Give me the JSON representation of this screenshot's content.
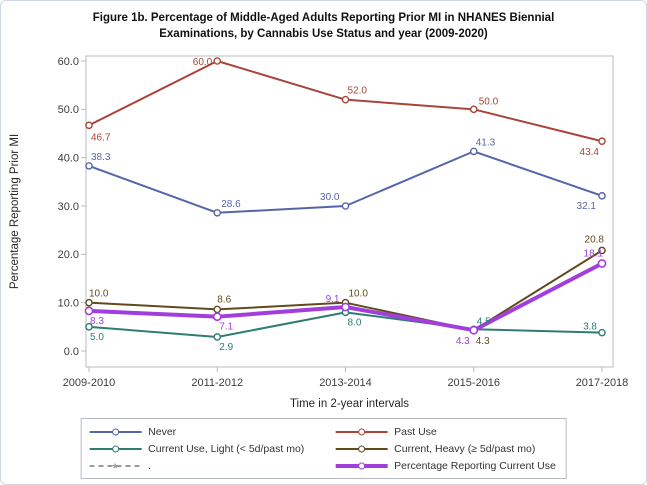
{
  "figure": {
    "title": "Figure 1b. Percentage of Middle-Aged Adults Reporting Prior MI in NHANES Biennial Examinations, by Cannabis Use Status and year (2009-2020)"
  },
  "chart_data": {
    "type": "line",
    "title": "Figure 1b. Percentage of Middle-Aged Adults Reporting Prior MI in NHANES Biennial Examinations, by Cannabis Use Status and year (2009-2020)",
    "xlabel": "Time in 2-year intervals",
    "ylabel": "Percentage Reporting Prior MI",
    "categories": [
      "2009-2010",
      "2011-2012",
      "2013-2014",
      "2015-2016",
      "2017-2018"
    ],
    "yticks": [
      0,
      10,
      20,
      30,
      40,
      50,
      60
    ],
    "ylim": [
      0,
      60
    ],
    "grid": false,
    "legend_position": "bottom",
    "axis_color": "#b6bcc2",
    "tick_label_color": "#3d3d3d",
    "axis_title_color": "#262626",
    "series": [
      {
        "name": "Never",
        "color": "#5665a9",
        "width": 2,
        "values": [
          38.3,
          28.6,
          30.0,
          41.3,
          32.1
        ],
        "labels": [
          "38.3",
          "28.6",
          "30.0",
          "41.3",
          "32.1"
        ],
        "label_pos": [
          [
            2,
            -6,
            "start"
          ],
          [
            4,
            -6,
            "start"
          ],
          [
            -6,
            -6,
            "end"
          ],
          [
            2,
            -6,
            "start"
          ],
          [
            -6,
            13,
            "end"
          ]
        ]
      },
      {
        "name": "Past Use",
        "color": "#a8443a",
        "width": 2,
        "values": [
          46.7,
          60.0,
          52.0,
          50.0,
          43.4
        ],
        "labels": [
          "46.7",
          "60.0",
          "52.0",
          "50.0",
          "43.4"
        ],
        "label_pos": [
          [
            2,
            15,
            "start"
          ],
          [
            -5,
            4,
            "end"
          ],
          [
            2,
            -6,
            "start"
          ],
          [
            5,
            -5,
            "start"
          ],
          [
            -3,
            14,
            "end"
          ]
        ]
      },
      {
        "name": "Current Use, Light (< 5d/past mo)",
        "color": "#2f7d72",
        "width": 2,
        "values": [
          5.0,
          2.9,
          8.0,
          4.5,
          3.8
        ],
        "labels": [
          "5.0",
          "2.9",
          "8.0",
          "4.5",
          "3.8"
        ],
        "label_pos": [
          [
            1,
            13,
            "start"
          ],
          [
            2,
            13,
            "start"
          ],
          [
            2,
            13,
            "start"
          ],
          [
            3,
            -5,
            "start"
          ],
          [
            -5,
            -3,
            "end"
          ]
        ]
      },
      {
        "name": "Current, Heavy (≥ 5d/past mo)",
        "color": "#634a1c",
        "width": 2,
        "values": [
          10.0,
          8.6,
          10.0,
          4.3,
          20.8
        ],
        "labels": [
          "10.0",
          "8.6",
          "10.0",
          "4.3",
          "20.8"
        ],
        "label_pos": [
          [
            0,
            -6,
            "start"
          ],
          [
            0,
            -7,
            "start"
          ],
          [
            3,
            -6,
            "start"
          ],
          [
            2,
            14,
            "start"
          ],
          [
            2,
            -8,
            "end"
          ]
        ]
      },
      {
        "name": "Percentage Reporting Current Use",
        "color": "#a23edb",
        "width": 4,
        "values": [
          8.3,
          7.1,
          9.1,
          4.3,
          18.1
        ],
        "labels": [
          "8.3",
          "7.1",
          "9.1",
          "4.3",
          "18.1"
        ],
        "label_pos": [
          [
            1,
            13,
            "start"
          ],
          [
            2,
            13,
            "start"
          ],
          [
            -6,
            -5,
            "end"
          ],
          [
            -4,
            14,
            "end"
          ],
          [
            1,
            -7,
            "end"
          ]
        ]
      }
    ],
    "extra_legend": {
      "label": ".",
      "color": "#999999",
      "style": "dashed",
      "marker_char": "*"
    }
  }
}
